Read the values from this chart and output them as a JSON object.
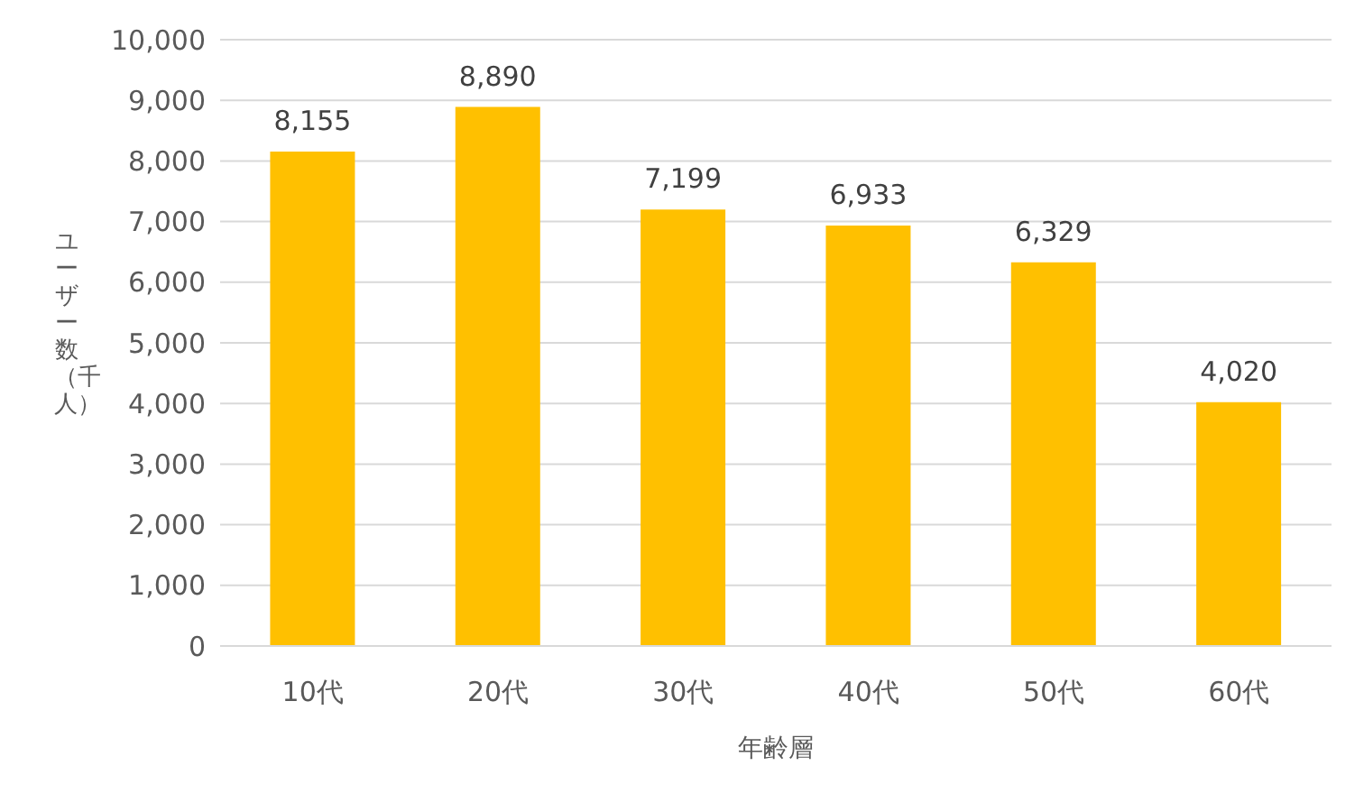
{
  "chart_data": {
    "type": "bar",
    "xlabel": "年齢層",
    "ylabel": "ユーザー数（千人）",
    "categories": [
      "10代",
      "20代",
      "30代",
      "40代",
      "50代",
      "60代"
    ],
    "series": [
      {
        "color": "#ffc000",
        "values": [
          8155,
          8890,
          7199,
          6933,
          6329,
          4020
        ],
        "value_labels": [
          "8,155",
          "8,890",
          "7,199",
          "6,933",
          "6,329",
          "4,020"
        ]
      }
    ],
    "ylim": [
      0,
      10000
    ],
    "yticks": [
      0,
      {
        "value": 1000,
        "label": "1,000"
      },
      {
        "value": 2000,
        "label": "2,000"
      },
      {
        "value": 3000,
        "label": "3,000"
      },
      {
        "value": 4000,
        "label": "4,000"
      },
      {
        "value": 5000,
        "label": "5,000"
      },
      {
        "value": 6000,
        "label": "6,000"
      },
      {
        "value": 7000,
        "label": "7,000"
      },
      {
        "value": 8000,
        "label": "8,000"
      },
      {
        "value": 9000,
        "label": "9,000"
      },
      {
        "value": 10000,
        "label": "10,000"
      }
    ],
    "grid": "y"
  }
}
